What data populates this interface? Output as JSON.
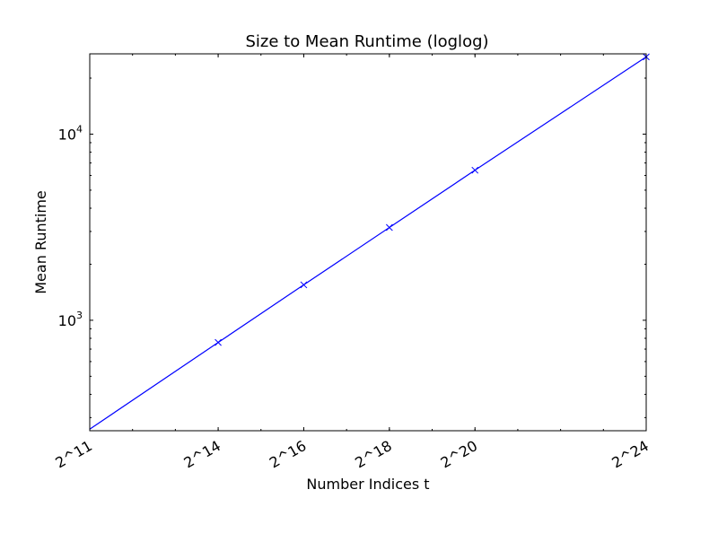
{
  "chart_data": {
    "type": "line",
    "title": "Size to Mean Runtime (loglog)",
    "xlabel": "Number Indices t",
    "ylabel": "Mean Runtime",
    "x_scale": "log2",
    "y_scale": "log10",
    "x_ticks": [
      {
        "value": 2048,
        "label": "2^11"
      },
      {
        "value": 16384,
        "label": "2^14"
      },
      {
        "value": 65536,
        "label": "2^16"
      },
      {
        "value": 262144,
        "label": "2^18"
      },
      {
        "value": 1048576,
        "label": "2^20"
      },
      {
        "value": 16777216,
        "label": "2^24"
      }
    ],
    "y_ticks": [
      {
        "value": 1000,
        "base": "10",
        "exp": "3"
      },
      {
        "value": 10000,
        "base": "10",
        "exp": "4"
      }
    ],
    "xlim": [
      2048,
      16777216
    ],
    "ylim": [
      255,
      27000
    ],
    "grid": false,
    "series": [
      {
        "color": "#0000ff",
        "marker": "x",
        "x": [
          2048,
          16384,
          65536,
          262144,
          1048576,
          16777216
        ],
        "y": [
          260,
          760,
          1550,
          3150,
          6400,
          26000
        ],
        "marker_points": [
          16384,
          65536,
          262144,
          1048576,
          16777216
        ]
      }
    ]
  }
}
